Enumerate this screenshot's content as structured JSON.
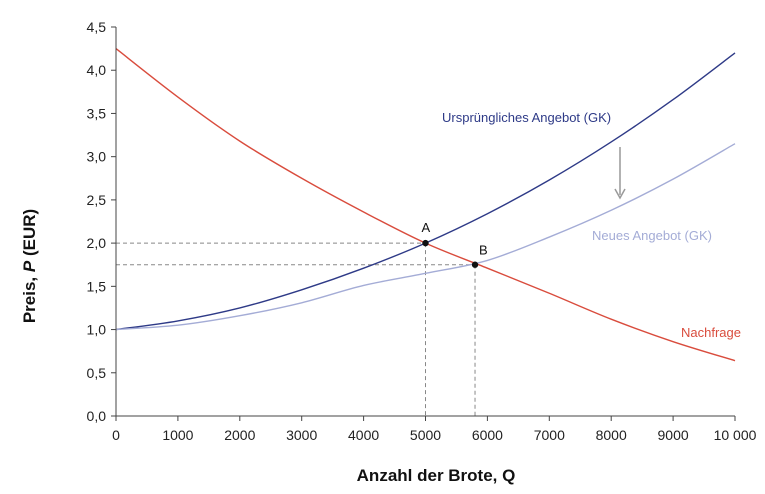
{
  "chart_data": {
    "type": "line",
    "xlabel": "Anzahl der Brote, Q",
    "ylabel_prefix": "Preis, ",
    "ylabel_italic": "P",
    "ylabel_suffix": " (EUR)",
    "xlim": [
      0,
      10000
    ],
    "ylim": [
      0,
      4.5
    ],
    "x_ticks": [
      0,
      1000,
      2000,
      3000,
      4000,
      5000,
      6000,
      7000,
      8000,
      9000,
      10000
    ],
    "x_tick_labels": [
      "0",
      "1000",
      "2000",
      "3000",
      "4000",
      "5000",
      "6000",
      "7000",
      "8000",
      "9000",
      "10 000"
    ],
    "y_ticks": [
      0,
      0.5,
      1,
      1.5,
      2,
      2.5,
      3,
      3.5,
      4,
      4.5
    ],
    "y_tick_labels": [
      "0,0",
      "0,5",
      "1,0",
      "1,5",
      "2,0",
      "2,5",
      "3,0",
      "3,5",
      "4,0",
      "4,5"
    ],
    "grid": false,
    "series": [
      {
        "name": "Ursprüngliches Angebot (GK)",
        "color": "#2e3a87",
        "x": [
          0,
          1000,
          2000,
          3000,
          4000,
          5000,
          6000,
          7000,
          8000,
          9000,
          10000
        ],
        "y": [
          1.0,
          1.1,
          1.25,
          1.46,
          1.71,
          2.0,
          2.34,
          2.73,
          3.17,
          3.66,
          4.2
        ]
      },
      {
        "name": "Neues Angebot (GK)",
        "color": "#a4acd6",
        "x": [
          0,
          1000,
          2000,
          3000,
          4000,
          5000,
          6000,
          7000,
          8000,
          9000,
          10000
        ],
        "y": [
          1.0,
          1.05,
          1.16,
          1.31,
          1.51,
          1.65,
          1.8,
          2.07,
          2.38,
          2.74,
          3.15
        ]
      },
      {
        "name": "Nachfrage",
        "color": "#d94c3d",
        "x": [
          0,
          1000,
          2000,
          3000,
          4000,
          5000,
          6000,
          7000,
          8000,
          9000,
          10000
        ],
        "y": [
          4.25,
          3.69,
          3.18,
          2.75,
          2.36,
          2.0,
          1.71,
          1.42,
          1.12,
          0.86,
          0.64
        ]
      }
    ],
    "points": [
      {
        "label": "A",
        "x": 5000,
        "y": 2.0
      },
      {
        "label": "B",
        "x": 5800,
        "y": 1.75
      }
    ],
    "shift_arrow_color": "#999999"
  }
}
